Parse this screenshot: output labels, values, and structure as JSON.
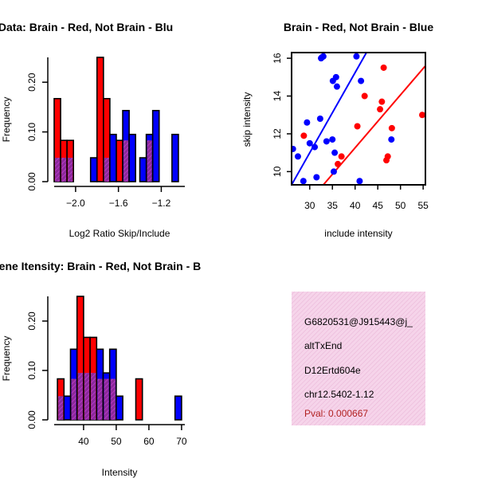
{
  "colors": {
    "red": "#ff0000",
    "blue": "#0000ff",
    "overlap": "#8b2a9a",
    "overlap_hatch": "#c03ad0",
    "info_bg": "#f6d4ea",
    "info_hatch": "#eab7d8",
    "pval": "#b22222"
  },
  "chart_data": [
    {
      "id": "ratio-hist",
      "type": "bar",
      "title": "RatioData: Brain - Red, Not Brain - Blu",
      "xlabel": "Log2 Ratio Skip/Include",
      "ylabel": "Frequency",
      "xlim": [
        -2.2,
        -0.98
      ],
      "ylim": [
        0,
        0.25
      ],
      "xticks": [
        -2.0,
        -1.6,
        -1.2
      ],
      "xtick_labels": [
        "−2.0",
        "−1.6",
        "−1.2"
      ],
      "yticks": [
        0.0,
        0.1,
        0.2
      ],
      "ytick_labels": [
        "0.00",
        "0.10",
        "0.20"
      ],
      "bin_width": 0.06,
      "series": [
        {
          "name": "Brain",
          "color": "red",
          "bins": [
            {
              "x0": -2.2,
              "v": 0.167
            },
            {
              "x0": -2.14,
              "v": 0.083
            },
            {
              "x0": -2.08,
              "v": 0.083
            },
            {
              "x0": -1.8,
              "v": 0.25
            },
            {
              "x0": -1.74,
              "v": 0.167
            },
            {
              "x0": -1.62,
              "v": 0.083
            },
            {
              "x0": -1.56,
              "v": 0.083
            },
            {
              "x0": -1.34,
              "v": 0.083
            }
          ]
        },
        {
          "name": "Not Brain",
          "color": "blue",
          "bins": [
            {
              "x0": -2.2,
              "v": 0.048
            },
            {
              "x0": -2.14,
              "v": 0.048
            },
            {
              "x0": -2.08,
              "v": 0.048
            },
            {
              "x0": -1.86,
              "v": 0.048
            },
            {
              "x0": -1.74,
              "v": 0.048
            },
            {
              "x0": -1.68,
              "v": 0.095
            },
            {
              "x0": -1.56,
              "v": 0.143
            },
            {
              "x0": -1.5,
              "v": 0.095
            },
            {
              "x0": -1.4,
              "v": 0.048
            },
            {
              "x0": -1.34,
              "v": 0.095
            },
            {
              "x0": -1.28,
              "v": 0.143
            },
            {
              "x0": -1.1,
              "v": 0.095
            }
          ]
        }
      ]
    },
    {
      "id": "scatter",
      "type": "scatter",
      "title": "Brain - Red, Not Brain - Blue",
      "xlabel": "include intensity",
      "ylabel": "skip intensity",
      "xlim": [
        26,
        55.5
      ],
      "ylim": [
        9.3,
        16.3
      ],
      "xticks": [
        30,
        35,
        40,
        45,
        50,
        55
      ],
      "yticks": [
        10,
        12,
        14,
        16
      ],
      "series": [
        {
          "name": "Brain",
          "color": "red",
          "points": [
            [
              28.7,
              11.9
            ],
            [
              36.2,
              10.4
            ],
            [
              37.0,
              10.8
            ],
            [
              40.5,
              12.4
            ],
            [
              42.1,
              14.0
            ],
            [
              45.5,
              13.3
            ],
            [
              45.9,
              13.7
            ],
            [
              46.3,
              15.5
            ],
            [
              46.9,
              10.6
            ],
            [
              47.2,
              10.8
            ],
            [
              48.1,
              12.3
            ],
            [
              54.8,
              13.0
            ]
          ],
          "fit": [
            [
              33,
              9.3
            ],
            [
              55.5,
              15.6
            ]
          ]
        },
        {
          "name": "Not Brain",
          "color": "blue",
          "points": [
            [
              26.3,
              11.2
            ],
            [
              27.4,
              10.8
            ],
            [
              28.6,
              9.5
            ],
            [
              29.4,
              12.6
            ],
            [
              30.0,
              11.5
            ],
            [
              31.1,
              11.3
            ],
            [
              31.5,
              9.7
            ],
            [
              32.3,
              12.8
            ],
            [
              32.5,
              16.0
            ],
            [
              32.7,
              16.05
            ],
            [
              33.0,
              16.1
            ],
            [
              33.7,
              11.6
            ],
            [
              35.0,
              11.7
            ],
            [
              35.1,
              14.8
            ],
            [
              35.3,
              10.0
            ],
            [
              35.5,
              11.0
            ],
            [
              35.8,
              15.0
            ],
            [
              36.0,
              14.5
            ],
            [
              40.3,
              16.1
            ],
            [
              41.0,
              9.5
            ],
            [
              41.3,
              14.8
            ],
            [
              48.0,
              11.7
            ]
          ],
          "fit": [
            [
              26,
              9.3
            ],
            [
              42.5,
              16.3
            ]
          ]
        }
      ]
    },
    {
      "id": "intensity-hist",
      "type": "bar",
      "title": "Gene Itensity: Brain - Red, Not Brain - B",
      "xlabel": "Intensity",
      "ylabel": "Frequency",
      "xlim": [
        31,
        71
      ],
      "ylim": [
        0,
        0.25
      ],
      "xticks": [
        40,
        50,
        60,
        70
      ],
      "yticks": [
        0.0,
        0.1,
        0.2
      ],
      "ytick_labels": [
        "0.00",
        "0.10",
        "0.20"
      ],
      "bin_width": 2,
      "series": [
        {
          "name": "Brain",
          "color": "red",
          "bins": [
            {
              "x0": 32,
              "v": 0.083
            },
            {
              "x0": 36,
              "v": 0.083
            },
            {
              "x0": 38,
              "v": 0.25
            },
            {
              "x0": 40,
              "v": 0.167
            },
            {
              "x0": 42,
              "v": 0.167
            },
            {
              "x0": 44,
              "v": 0.083
            },
            {
              "x0": 46,
              "v": 0.083
            },
            {
              "x0": 48,
              "v": 0.083
            },
            {
              "x0": 50,
              "v": 0.0
            },
            {
              "x0": 56,
              "v": 0.083
            }
          ]
        },
        {
          "name": "Not Brain",
          "color": "blue",
          "bins": [
            {
              "x0": 32,
              "v": 0.048
            },
            {
              "x0": 34,
              "v": 0.048
            },
            {
              "x0": 36,
              "v": 0.143
            },
            {
              "x0": 38,
              "v": 0.095
            },
            {
              "x0": 40,
              "v": 0.095
            },
            {
              "x0": 42,
              "v": 0.095
            },
            {
              "x0": 44,
              "v": 0.143
            },
            {
              "x0": 46,
              "v": 0.095
            },
            {
              "x0": 48,
              "v": 0.143
            },
            {
              "x0": 50,
              "v": 0.048
            },
            {
              "x0": 68,
              "v": 0.048
            }
          ]
        }
      ]
    }
  ],
  "info": {
    "gene_id": "G6820531@J915443@j_",
    "event_type": "altTxEnd",
    "gene_name": "D12Ertd604e",
    "location": "chr12.5402-1.12",
    "pval": "Pval: 0.000667"
  }
}
